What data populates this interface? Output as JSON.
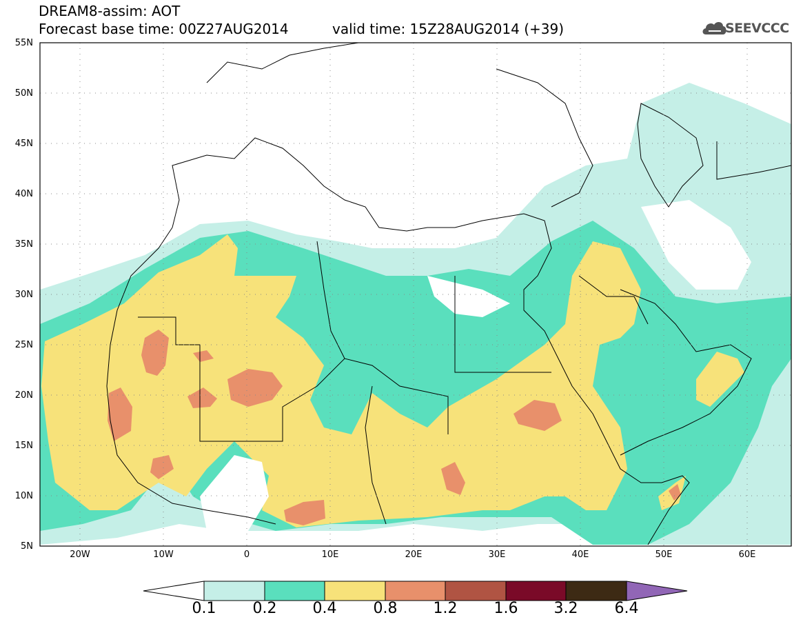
{
  "header": {
    "model_line": "DREAM8-assim: AOT",
    "base_time_line": "Forecast base time: 00Z27AUG2014",
    "valid_time_line": "valid time: 15Z28AUG2014 (+39)",
    "logo_text": "SEEVCCC"
  },
  "map": {
    "projection": "lat-lon",
    "lon_range": [
      -25,
      65
    ],
    "lat_range": [
      5,
      55
    ],
    "grid": "dotted",
    "lat_ticks": [
      "55N",
      "50N",
      "45N",
      "40N",
      "35N",
      "30N",
      "25N",
      "20N",
      "15N",
      "10N",
      "5N"
    ],
    "lon_ticks": [
      "20W",
      "10W",
      "0",
      "10E",
      "20E",
      "30E",
      "40E",
      "50E",
      "60E"
    ]
  },
  "colorbar": {
    "levels": [
      "0.1",
      "0.2",
      "0.4",
      "0.8",
      "1.2",
      "1.6",
      "3.2",
      "6.4"
    ],
    "colors": [
      "#c5efe7",
      "#5adfbd",
      "#f7e27a",
      "#e8906b",
      "#b05443",
      "#7a0a28",
      "#3d2a14",
      "#9166b6"
    ]
  },
  "legend_colors": {
    "bin_0_1_0_2": "#c5efe7",
    "bin_0_2_0_4": "#5adfbd",
    "bin_0_4_0_8": "#f7e27a",
    "bin_0_8_1_2": "#e8906b",
    "bin_1_2_1_6": "#b05443"
  }
}
